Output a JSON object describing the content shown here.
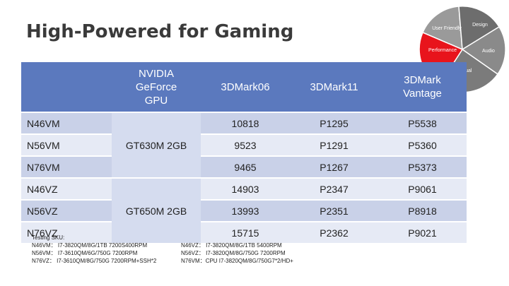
{
  "slide": {
    "title": "High-Powered for Gaming"
  },
  "wheel": {
    "segments": [
      {
        "label": "User Friendly",
        "color": "#9a9a9a"
      },
      {
        "label": "Design",
        "color": "#6d6d6d"
      },
      {
        "label": "Audio",
        "color": "#8a8a8a"
      },
      {
        "label": "Visual",
        "color": "#7b7b7b"
      },
      {
        "label": "Performance",
        "color": "#e8141c"
      }
    ]
  },
  "table": {
    "headers": {
      "gpu": [
        "NVIDIA",
        "GeForce",
        "GPU"
      ],
      "bench1": "3DMark06",
      "bench2": "3DMark11",
      "bench3": [
        "3DMark",
        "Vantage"
      ]
    },
    "groups": [
      {
        "gpu": "GT630M 2GB",
        "rows": [
          {
            "model": "N46VM",
            "b06": "10818",
            "b11": "P1295",
            "vantage": "P5538"
          },
          {
            "model": "N56VM",
            "b06": "9523",
            "b11": "P1291",
            "vantage": "P5360"
          },
          {
            "model": "N76VM",
            "b06": "9465",
            "b11": "P1267",
            "vantage": "P5373"
          }
        ]
      },
      {
        "gpu": "GT650M 2GB",
        "rows": [
          {
            "model": "N46VZ",
            "b06": "14903",
            "b11": "P2347",
            "vantage": "P9061"
          },
          {
            "model": "N56VZ",
            "b06": "13993",
            "b11": "P2351",
            "vantage": "P8918"
          },
          {
            "model": "N76VZ",
            "b06": "15715",
            "b11": "P2362",
            "vantage": "P9021"
          }
        ]
      }
    ]
  },
  "notes": {
    "heading": "Testing SKU:",
    "left": [
      "N46VM： I7-3820QM/8G/1TB 7200S400RPM",
      "N56VM： I7-3610QM/6G/750G 7200RPM",
      "N76VZ： I7-3610QM/8G/750G 7200RPM+SSH*2"
    ],
    "right": [
      "N46VZ： I7-3820QM/8G/1TB 5400RPM",
      "N56VZ： I7-3820QM/8G/750G 7200RPM",
      "N76VM：CPU I7-3820QM/8G/750G7*2/HD+"
    ]
  }
}
